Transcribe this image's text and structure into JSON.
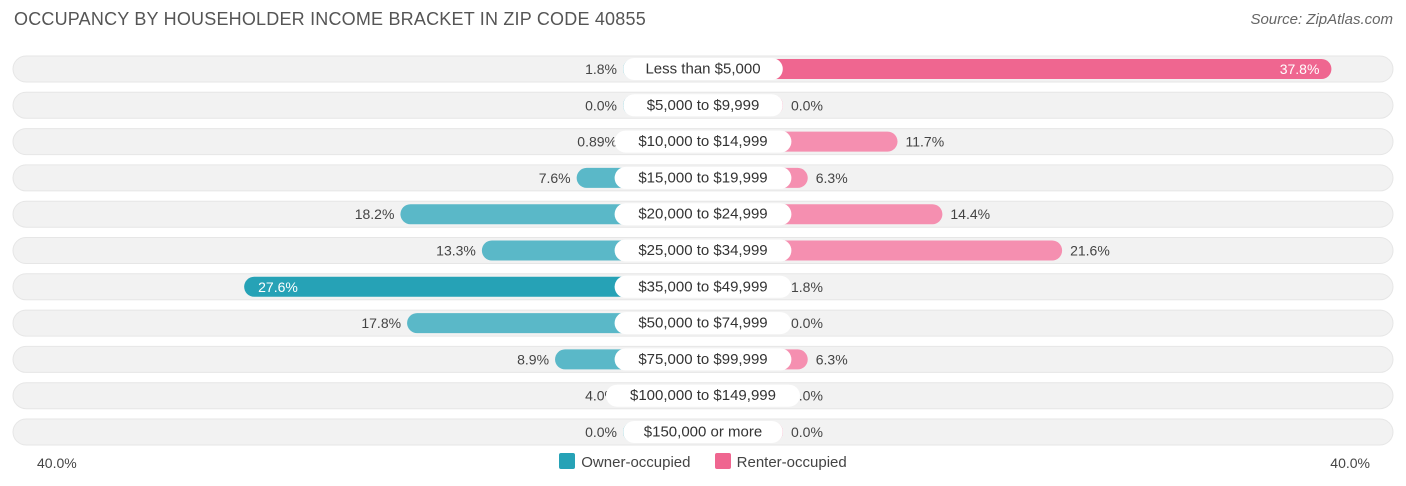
{
  "header": {
    "title": "OCCUPANCY BY HOUSEHOLDER INCOME BRACKET IN ZIP CODE 40855",
    "source": "Source: ZipAtlas.com"
  },
  "legend": {
    "owner_label": "Owner-occupied",
    "renter_label": "Renter-occupied"
  },
  "axis": {
    "left_label": "40.0%",
    "right_label": "40.0%"
  },
  "colors": {
    "owner": "#5ab8c8",
    "owner_strong": "#26a2b6",
    "renter": "#f58fb0",
    "renter_strong": "#ef6690",
    "row_bg": "#f2f2f2"
  },
  "chart_data": {
    "type": "bar",
    "orientation": "horizontal-diverging",
    "title": "OCCUPANCY BY HOUSEHOLDER INCOME BRACKET IN ZIP CODE 40855",
    "categories": [
      "Less than $5,000",
      "$5,000 to $9,999",
      "$10,000 to $14,999",
      "$15,000 to $19,999",
      "$20,000 to $24,999",
      "$25,000 to $34,999",
      "$35,000 to $49,999",
      "$50,000 to $74,999",
      "$75,000 to $99,999",
      "$100,000 to $149,999",
      "$150,000 or more"
    ],
    "series": [
      {
        "name": "Owner-occupied",
        "values": [
          1.8,
          0.0,
          0.89,
          7.6,
          18.2,
          13.3,
          27.6,
          17.8,
          8.9,
          4.0,
          0.0
        ],
        "labels": [
          "1.8%",
          "0.0%",
          "0.89%",
          "7.6%",
          "18.2%",
          "13.3%",
          "27.6%",
          "17.8%",
          "8.9%",
          "4.0%",
          "0.0%"
        ]
      },
      {
        "name": "Renter-occupied",
        "values": [
          37.8,
          0.0,
          11.7,
          6.3,
          14.4,
          21.6,
          1.8,
          0.0,
          6.3,
          0.0,
          0.0
        ],
        "labels": [
          "37.8%",
          "0.0%",
          "11.7%",
          "6.3%",
          "14.4%",
          "21.6%",
          "1.8%",
          "0.0%",
          "6.3%",
          "0.0%",
          "0.0%"
        ]
      }
    ],
    "xlim": [
      -40,
      40
    ],
    "unit": "%",
    "legend_position": "bottom-center"
  }
}
